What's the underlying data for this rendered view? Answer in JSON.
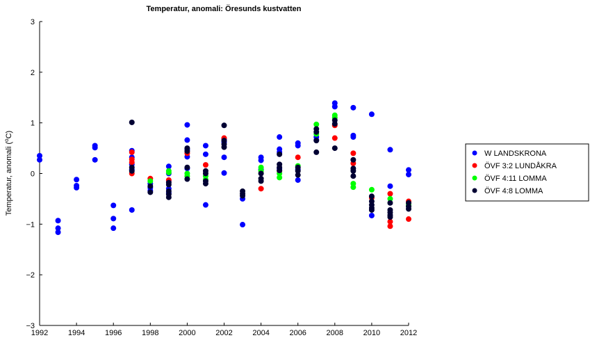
{
  "chart_data": {
    "type": "scatter",
    "title": "Temperatur, anomali: Öresunds kustvatten",
    "ylabel_main": "Temperatur, anomali (",
    "ylabel_sup": "o",
    "ylabel_end": "C)",
    "xlabel": "",
    "xlim": [
      1992,
      2012
    ],
    "ylim": [
      -3,
      3
    ],
    "xticks": [
      1992,
      1994,
      1996,
      1998,
      2000,
      2002,
      2004,
      2006,
      2008,
      2010,
      2012
    ],
    "yticks": [
      -3,
      -2,
      -1,
      0,
      1,
      2,
      3
    ],
    "ytick_labels": [
      "−3",
      "−2",
      "−1",
      "0",
      "1",
      "2",
      "3"
    ],
    "grid": false,
    "legend_position": "right",
    "series": [
      {
        "name": "W LANDSKRONA",
        "color": "#0000ff",
        "points": [
          [
            1992,
            0.35
          ],
          [
            1992,
            0.27
          ],
          [
            1993,
            -0.93
          ],
          [
            1993,
            -1.08
          ],
          [
            1993,
            -1.16
          ],
          [
            1994,
            -0.12
          ],
          [
            1994,
            -0.24
          ],
          [
            1994,
            -0.28
          ],
          [
            1995,
            0.55
          ],
          [
            1995,
            0.51
          ],
          [
            1995,
            0.27
          ],
          [
            1996,
            -0.63
          ],
          [
            1996,
            -0.89
          ],
          [
            1996,
            -1.08
          ],
          [
            1997,
            0.45
          ],
          [
            1997,
            0.32
          ],
          [
            1997,
            0.18
          ],
          [
            1997,
            0.08
          ],
          [
            1997,
            -0.72
          ],
          [
            1998,
            -0.2
          ],
          [
            1998,
            -0.28
          ],
          [
            1998,
            -0.34
          ],
          [
            1999,
            0.14
          ],
          [
            1999,
            0.0
          ],
          [
            1999,
            -0.15
          ],
          [
            1999,
            -0.3
          ],
          [
            1999,
            -0.38
          ],
          [
            2000,
            0.96
          ],
          [
            2000,
            0.66
          ],
          [
            2000,
            0.47
          ],
          [
            2000,
            0.33
          ],
          [
            2000,
            0.1
          ],
          [
            2001,
            0.55
          ],
          [
            2001,
            0.38
          ],
          [
            2001,
            -0.62
          ],
          [
            2002,
            0.68
          ],
          [
            2002,
            0.62
          ],
          [
            2002,
            0.32
          ],
          [
            2002,
            0.01
          ],
          [
            2003,
            -0.5
          ],
          [
            2003,
            -1.01
          ],
          [
            2004,
            0.32
          ],
          [
            2004,
            0.26
          ],
          [
            2004,
            0.08
          ],
          [
            2005,
            0.72
          ],
          [
            2005,
            0.48
          ],
          [
            2005,
            0.42
          ],
          [
            2005,
            0.1
          ],
          [
            2006,
            0.6
          ],
          [
            2006,
            0.55
          ],
          [
            2006,
            0.08
          ],
          [
            2006,
            -0.13
          ],
          [
            2007,
            0.72
          ],
          [
            2007,
            0.66
          ],
          [
            2008,
            1.39
          ],
          [
            2008,
            1.32
          ],
          [
            2009,
            1.3
          ],
          [
            2009,
            0.75
          ],
          [
            2009,
            0.72
          ],
          [
            2010,
            1.17
          ],
          [
            2010,
            -0.83
          ],
          [
            2011,
            0.47
          ],
          [
            2011,
            -0.25
          ],
          [
            2012,
            0.07
          ],
          [
            2012,
            -0.02
          ]
        ]
      },
      {
        "name": "ÖVF 3:2 LUNDÅKRA",
        "color": "#ff0000",
        "points": [
          [
            1997,
            0.42
          ],
          [
            1997,
            0.28
          ],
          [
            1997,
            0.22
          ],
          [
            1997,
            0.0
          ],
          [
            1998,
            -0.1
          ],
          [
            1999,
            -0.13
          ],
          [
            2000,
            0.4
          ],
          [
            2001,
            0.17
          ],
          [
            2002,
            0.7
          ],
          [
            2004,
            -0.3
          ],
          [
            2005,
            0.05
          ],
          [
            2006,
            0.32
          ],
          [
            2008,
            0.95
          ],
          [
            2008,
            0.7
          ],
          [
            2009,
            0.4
          ],
          [
            2009,
            0.2
          ],
          [
            2010,
            -0.48
          ],
          [
            2011,
            -0.4
          ],
          [
            2011,
            -0.95
          ],
          [
            2011,
            -1.04
          ],
          [
            2012,
            -0.55
          ],
          [
            2012,
            -0.9
          ]
        ]
      },
      {
        "name": "ÖVF 4:11 LOMMA",
        "color": "#00ff00",
        "points": [
          [
            1998,
            -0.15
          ],
          [
            1999,
            0.05
          ],
          [
            1999,
            0.02
          ],
          [
            2000,
            0.0
          ],
          [
            2000,
            -0.05
          ],
          [
            2001,
            -0.05
          ],
          [
            2001,
            -0.12
          ],
          [
            2004,
            0.12
          ],
          [
            2004,
            0.05
          ],
          [
            2005,
            0.0
          ],
          [
            2005,
            -0.08
          ],
          [
            2006,
            0.15
          ],
          [
            2007,
            0.97
          ],
          [
            2007,
            0.78
          ],
          [
            2008,
            1.15
          ],
          [
            2008,
            1.1
          ],
          [
            2009,
            -0.2
          ],
          [
            2009,
            -0.27
          ],
          [
            2010,
            -0.32
          ],
          [
            2011,
            -0.5
          ],
          [
            2012,
            -0.6
          ],
          [
            2012,
            -0.64
          ]
        ]
      },
      {
        "name": "ÖVF 4:8 LOMMA",
        "color": "#000033",
        "points": [
          [
            1997,
            1.01
          ],
          [
            1997,
            0.12
          ],
          [
            1997,
            0.05
          ],
          [
            1998,
            -0.25
          ],
          [
            1998,
            -0.37
          ],
          [
            1999,
            -0.18
          ],
          [
            1999,
            -0.22
          ],
          [
            1999,
            -0.35
          ],
          [
            1999,
            -0.41
          ],
          [
            1999,
            -0.47
          ],
          [
            2000,
            0.5
          ],
          [
            2000,
            0.44
          ],
          [
            2000,
            0.12
          ],
          [
            2000,
            -0.11
          ],
          [
            2001,
            0.05
          ],
          [
            2001,
            0.0
          ],
          [
            2001,
            -0.15
          ],
          [
            2001,
            -0.2
          ],
          [
            2002,
            0.95
          ],
          [
            2002,
            0.65
          ],
          [
            2002,
            0.58
          ],
          [
            2002,
            0.52
          ],
          [
            2003,
            -0.35
          ],
          [
            2003,
            -0.4
          ],
          [
            2003,
            -0.44
          ],
          [
            2004,
            0.0
          ],
          [
            2004,
            -0.1
          ],
          [
            2004,
            -0.15
          ],
          [
            2005,
            0.38
          ],
          [
            2005,
            0.18
          ],
          [
            2005,
            0.12
          ],
          [
            2005,
            0.06
          ],
          [
            2006,
            0.12
          ],
          [
            2006,
            0.05
          ],
          [
            2006,
            -0.03
          ],
          [
            2007,
            0.88
          ],
          [
            2007,
            0.82
          ],
          [
            2007,
            0.65
          ],
          [
            2007,
            0.42
          ],
          [
            2008,
            1.05
          ],
          [
            2008,
            0.98
          ],
          [
            2008,
            0.5
          ],
          [
            2009,
            0.27
          ],
          [
            2009,
            0.1
          ],
          [
            2009,
            0.05
          ],
          [
            2009,
            -0.05
          ],
          [
            2010,
            -0.45
          ],
          [
            2010,
            -0.55
          ],
          [
            2010,
            -0.62
          ],
          [
            2010,
            -0.68
          ],
          [
            2010,
            -0.72
          ],
          [
            2011,
            -0.58
          ],
          [
            2011,
            -0.72
          ],
          [
            2011,
            -0.77
          ],
          [
            2011,
            -0.82
          ],
          [
            2011,
            -0.86
          ],
          [
            2012,
            -0.58
          ],
          [
            2012,
            -0.65
          ],
          [
            2012,
            -0.7
          ]
        ]
      }
    ]
  }
}
